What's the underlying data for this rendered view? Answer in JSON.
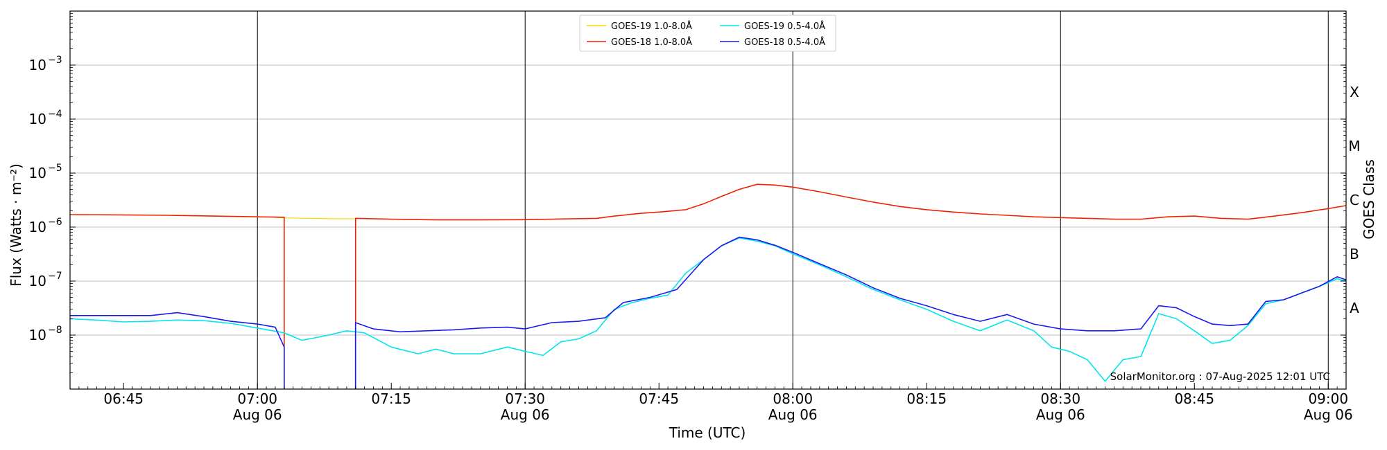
{
  "chart_data": {
    "type": "line",
    "ylabel": "Flux (Watts · m⁻²)",
    "xlabel": "Time (UTC)",
    "y2label": "GOES Class",
    "yscale": "log",
    "ylim": [
      1e-09,
      0.01
    ],
    "y_ticks": [
      {
        "value": 1e-08,
        "base": "10",
        "exp": "−8"
      },
      {
        "value": 1e-07,
        "base": "10",
        "exp": "−7"
      },
      {
        "value": 1e-06,
        "base": "10",
        "exp": "−6"
      },
      {
        "value": 1e-05,
        "base": "10",
        "exp": "−5"
      },
      {
        "value": 0.0001,
        "base": "10",
        "exp": "−4"
      },
      {
        "value": 0.001,
        "base": "10",
        "exp": "−3"
      }
    ],
    "xlim": [
      "06:39",
      "09:02"
    ],
    "x_ticks": [
      {
        "time": "06:45",
        "label": "06:45",
        "date": ""
      },
      {
        "time": "07:00",
        "label": "07:00",
        "date": "Aug 06"
      },
      {
        "time": "07:15",
        "label": "07:15",
        "date": ""
      },
      {
        "time": "07:30",
        "label": "07:30",
        "date": "Aug 06"
      },
      {
        "time": "07:45",
        "label": "07:45",
        "date": ""
      },
      {
        "time": "08:00",
        "label": "08:00",
        "date": "Aug 06"
      },
      {
        "time": "08:15",
        "label": "08:15",
        "date": ""
      },
      {
        "time": "08:30",
        "label": "08:30",
        "date": "Aug 06"
      },
      {
        "time": "08:45",
        "label": "08:45",
        "date": ""
      },
      {
        "time": "09:00",
        "label": "09:00",
        "date": "Aug 06"
      }
    ],
    "major_vlines": [
      "07:00",
      "07:30",
      "08:00",
      "08:30",
      "09:00"
    ],
    "goes_classes": [
      {
        "label": "A",
        "value": 1e-08
      },
      {
        "label": "B",
        "value": 1e-07
      },
      {
        "label": "C",
        "value": 1e-06
      },
      {
        "label": "M",
        "value": 1e-05
      },
      {
        "label": "X",
        "value": 0.0001
      }
    ],
    "grid": true,
    "legend_position": "top-center",
    "credit": "SolarMonitor.org : 07-Aug-2025 12:01 UTC",
    "series": [
      {
        "name": "GOES-19 1.0-8.0Å",
        "color": "#ffd700",
        "points": [
          [
            "07:02",
            1.5e-06
          ],
          [
            "07:05",
            1.46e-06
          ],
          [
            "07:08",
            1.43e-06
          ],
          [
            "07:11",
            1.42e-06
          ]
        ]
      },
      {
        "name": "GOES-18 1.0-8.0Å",
        "color": "#ee2200",
        "points": [
          [
            "06:39",
            1.7e-06
          ],
          [
            "06:45",
            1.68e-06
          ],
          [
            "06:50",
            1.65e-06
          ],
          [
            "06:55",
            1.6e-06
          ],
          [
            "07:00",
            1.55e-06
          ],
          [
            "07:03",
            1.52e-06
          ],
          [
            "07:03",
            1e-09
          ],
          null,
          [
            "07:11",
            1e-09
          ],
          [
            "07:11",
            1.45e-06
          ],
          [
            "07:15",
            1.4e-06
          ],
          [
            "07:20",
            1.36e-06
          ],
          [
            "07:25",
            1.36e-06
          ],
          [
            "07:30",
            1.37e-06
          ],
          [
            "07:35",
            1.42e-06
          ],
          [
            "07:38",
            1.45e-06
          ],
          [
            "07:40",
            1.6e-06
          ],
          [
            "07:43",
            1.8e-06
          ],
          [
            "07:45",
            1.9e-06
          ],
          [
            "07:48",
            2.1e-06
          ],
          [
            "07:50",
            2.7e-06
          ],
          [
            "07:52",
            3.7e-06
          ],
          [
            "07:54",
            5e-06
          ],
          [
            "07:56",
            6.2e-06
          ],
          [
            "07:58",
            6e-06
          ],
          [
            "08:00",
            5.5e-06
          ],
          [
            "08:03",
            4.5e-06
          ],
          [
            "08:06",
            3.6e-06
          ],
          [
            "08:09",
            2.9e-06
          ],
          [
            "08:12",
            2.4e-06
          ],
          [
            "08:15",
            2.1e-06
          ],
          [
            "08:18",
            1.9e-06
          ],
          [
            "08:21",
            1.75e-06
          ],
          [
            "08:24",
            1.65e-06
          ],
          [
            "08:27",
            1.55e-06
          ],
          [
            "08:30",
            1.5e-06
          ],
          [
            "08:33",
            1.45e-06
          ],
          [
            "08:36",
            1.4e-06
          ],
          [
            "08:39",
            1.4e-06
          ],
          [
            "08:42",
            1.55e-06
          ],
          [
            "08:45",
            1.6e-06
          ],
          [
            "08:48",
            1.45e-06
          ],
          [
            "08:51",
            1.4e-06
          ],
          [
            "08:54",
            1.6e-06
          ],
          [
            "08:57",
            1.85e-06
          ],
          [
            "09:00",
            2.2e-06
          ],
          [
            "09:02",
            2.5e-06
          ]
        ]
      },
      {
        "name": "GOES-19 0.5-4.0Å",
        "color": "#00e5ee",
        "points": [
          [
            "06:39",
            2e-08
          ],
          [
            "06:42",
            1.9e-08
          ],
          [
            "06:45",
            1.75e-08
          ],
          [
            "06:48",
            1.8e-08
          ],
          [
            "06:51",
            1.9e-08
          ],
          [
            "06:54",
            1.85e-08
          ],
          [
            "06:57",
            1.65e-08
          ],
          [
            "07:00",
            1.35e-08
          ],
          [
            "07:03",
            1.1e-08
          ],
          [
            "07:05",
            8e-09
          ],
          [
            "07:08",
            1e-08
          ],
          [
            "07:10",
            1.2e-08
          ],
          [
            "07:12",
            1.1e-08
          ],
          [
            "07:15",
            6e-09
          ],
          [
            "07:18",
            4.5e-09
          ],
          [
            "07:20",
            5.5e-09
          ],
          [
            "07:22",
            4.5e-09
          ],
          [
            "07:25",
            4.5e-09
          ],
          [
            "07:28",
            6e-09
          ],
          [
            "07:30",
            5e-09
          ],
          [
            "07:32",
            4.2e-09
          ],
          [
            "07:34",
            7.5e-09
          ],
          [
            "07:36",
            8.5e-09
          ],
          [
            "07:38",
            1.2e-08
          ],
          [
            "07:40",
            3e-08
          ],
          [
            "07:42",
            4e-08
          ],
          [
            "07:44",
            4.8e-08
          ],
          [
            "07:46",
            5.5e-08
          ],
          [
            "07:48",
            1.4e-07
          ],
          [
            "07:50",
            2.5e-07
          ],
          [
            "07:52",
            4.5e-07
          ],
          [
            "07:54",
            6.3e-07
          ],
          [
            "07:56",
            5.5e-07
          ],
          [
            "07:58",
            4.5e-07
          ],
          [
            "08:00",
            3.2e-07
          ],
          [
            "08:03",
            2e-07
          ],
          [
            "08:06",
            1.2e-07
          ],
          [
            "08:09",
            7e-08
          ],
          [
            "08:12",
            4.5e-08
          ],
          [
            "08:15",
            3e-08
          ],
          [
            "08:18",
            1.8e-08
          ],
          [
            "08:21",
            1.2e-08
          ],
          [
            "08:24",
            1.9e-08
          ],
          [
            "08:27",
            1.2e-08
          ],
          [
            "08:29",
            6e-09
          ],
          [
            "08:31",
            5e-09
          ],
          [
            "08:33",
            3.5e-09
          ],
          [
            "08:35",
            1.4e-09
          ],
          [
            "08:37",
            3.5e-09
          ],
          [
            "08:39",
            4e-09
          ],
          [
            "08:41",
            2.5e-08
          ],
          [
            "08:43",
            2e-08
          ],
          [
            "08:45",
            1.2e-08
          ],
          [
            "08:47",
            7e-09
          ],
          [
            "08:49",
            8e-09
          ],
          [
            "08:51",
            1.5e-08
          ],
          [
            "08:53",
            3.8e-08
          ],
          [
            "08:55",
            4.5e-08
          ],
          [
            "08:57",
            6e-08
          ],
          [
            "08:59",
            8e-08
          ],
          [
            "09:01",
            1.1e-07
          ],
          [
            "09:02",
            1e-07
          ]
        ]
      },
      {
        "name": "GOES-18 0.5-4.0Å",
        "color": "#1a1aee",
        "points": [
          [
            "06:39",
            2.3e-08
          ],
          [
            "06:42",
            2.3e-08
          ],
          [
            "06:45",
            2.3e-08
          ],
          [
            "06:48",
            2.3e-08
          ],
          [
            "06:51",
            2.6e-08
          ],
          [
            "06:54",
            2.2e-08
          ],
          [
            "06:57",
            1.8e-08
          ],
          [
            "07:00",
            1.6e-08
          ],
          [
            "07:02",
            1.4e-08
          ],
          [
            "07:03",
            6e-09
          ],
          [
            "07:03",
            1e-09
          ],
          null,
          [
            "07:11",
            1e-09
          ],
          [
            "07:11",
            1.7e-08
          ],
          [
            "07:13",
            1.3e-08
          ],
          [
            "07:16",
            1.15e-08
          ],
          [
            "07:19",
            1.2e-08
          ],
          [
            "07:22",
            1.25e-08
          ],
          [
            "07:25",
            1.35e-08
          ],
          [
            "07:28",
            1.4e-08
          ],
          [
            "07:30",
            1.3e-08
          ],
          [
            "07:33",
            1.7e-08
          ],
          [
            "07:36",
            1.8e-08
          ],
          [
            "07:39",
            2.1e-08
          ],
          [
            "07:41",
            4e-08
          ],
          [
            "07:44",
            5e-08
          ],
          [
            "07:47",
            7e-08
          ],
          [
            "07:50",
            2.5e-07
          ],
          [
            "07:52",
            4.5e-07
          ],
          [
            "07:54",
            6.5e-07
          ],
          [
            "07:56",
            5.8e-07
          ],
          [
            "07:58",
            4.6e-07
          ],
          [
            "08:00",
            3.4e-07
          ],
          [
            "08:03",
            2.1e-07
          ],
          [
            "08:06",
            1.3e-07
          ],
          [
            "08:09",
            7.5e-08
          ],
          [
            "08:12",
            4.8e-08
          ],
          [
            "08:15",
            3.5e-08
          ],
          [
            "08:18",
            2.4e-08
          ],
          [
            "08:21",
            1.8e-08
          ],
          [
            "08:24",
            2.4e-08
          ],
          [
            "08:27",
            1.6e-08
          ],
          [
            "08:30",
            1.3e-08
          ],
          [
            "08:33",
            1.2e-08
          ],
          [
            "08:36",
            1.2e-08
          ],
          [
            "08:39",
            1.3e-08
          ],
          [
            "08:41",
            3.5e-08
          ],
          [
            "08:43",
            3.2e-08
          ],
          [
            "08:45",
            2.2e-08
          ],
          [
            "08:47",
            1.6e-08
          ],
          [
            "08:49",
            1.5e-08
          ],
          [
            "08:51",
            1.6e-08
          ],
          [
            "08:53",
            4.2e-08
          ],
          [
            "08:55",
            4.5e-08
          ],
          [
            "08:57",
            6e-08
          ],
          [
            "08:59",
            8e-08
          ],
          [
            "09:01",
            1.2e-07
          ],
          [
            "09:02",
            1.05e-07
          ]
        ]
      }
    ]
  }
}
